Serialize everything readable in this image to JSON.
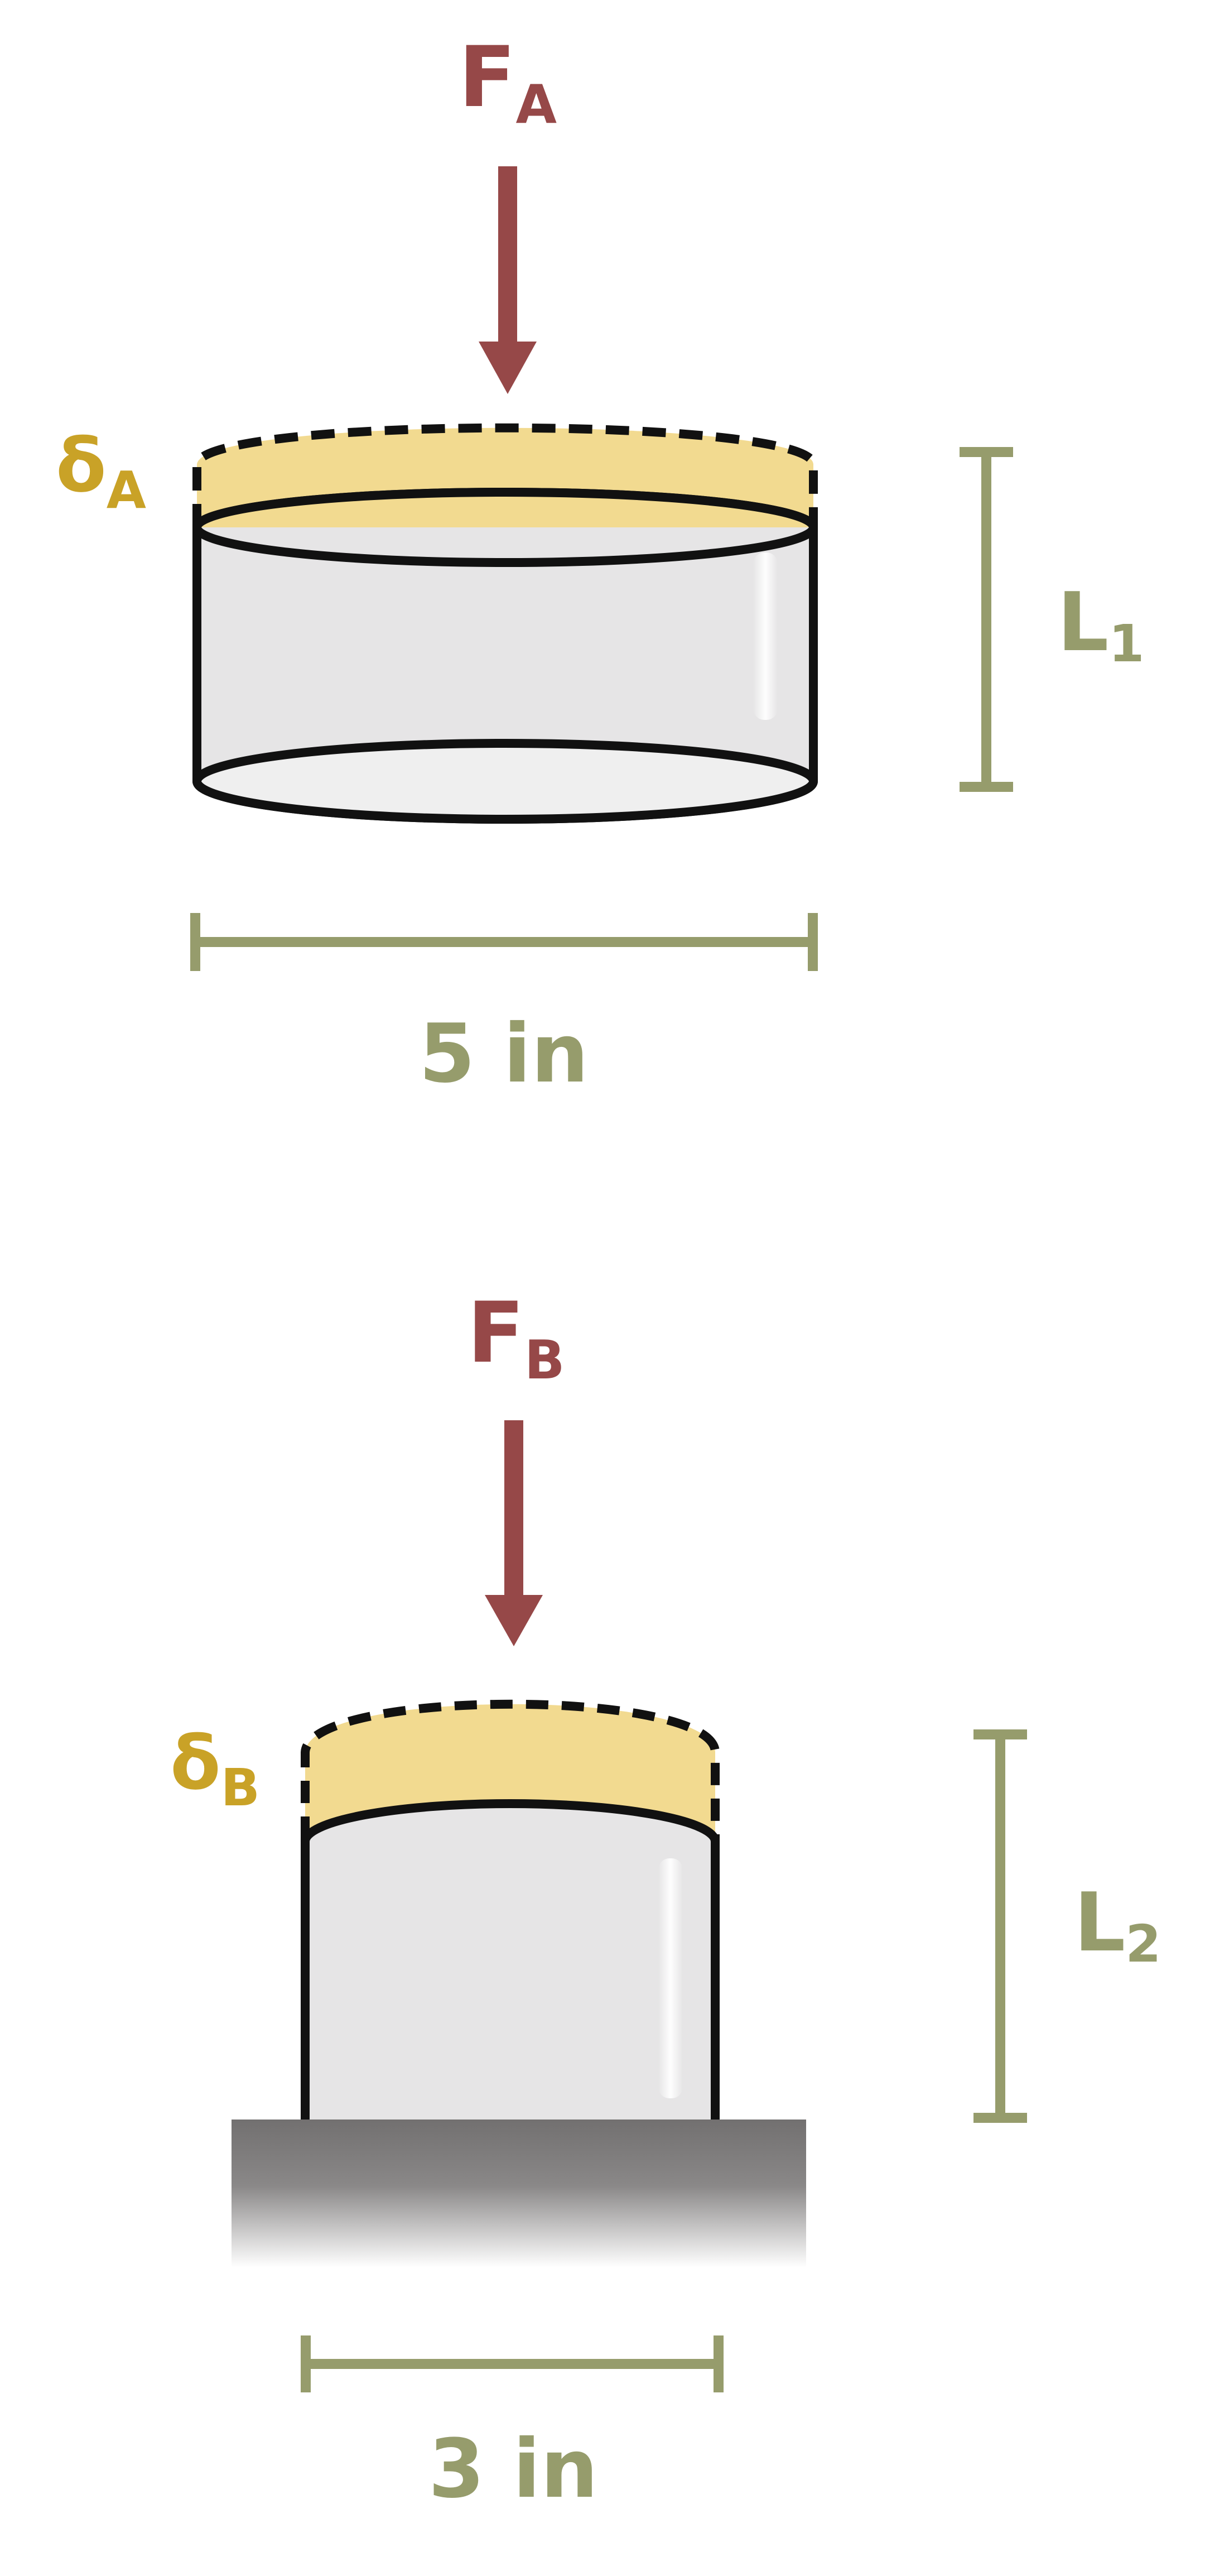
{
  "colors": {
    "force": "#964848",
    "deformation": "#c9a227",
    "deformation_fill": "#f2da90",
    "dimension": "#969c6c",
    "cylinder_fill": "#e6e5e6",
    "outline": "#111111",
    "ground_top": "#737171"
  },
  "cylinder_a": {
    "force_label": {
      "main": "F",
      "sub": "A"
    },
    "deformation_label": {
      "main": "δ",
      "sub": "A"
    },
    "length_label": {
      "main": "L",
      "sub": "1"
    },
    "diameter_label": "5 in"
  },
  "cylinder_b": {
    "force_label": {
      "main": "F",
      "sub": "B"
    },
    "deformation_label": {
      "main": "δ",
      "sub": "B"
    },
    "length_label": {
      "main": "L",
      "sub": "2"
    },
    "diameter_label": "3 in"
  }
}
